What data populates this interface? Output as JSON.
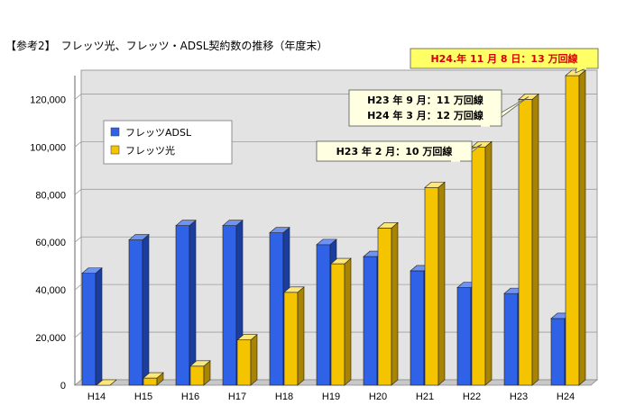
{
  "heading": "【参考2】　フレッツ光、フレッツ・ADSL契約数の推移（年度末）",
  "colors": {
    "adsl": "#2f62e6",
    "adsl_side": "#1a3ea0",
    "adsl_top": "#6f93f2",
    "hikari": "#f5c400",
    "hikari_side": "#a88400",
    "hikari_top": "#fde67a",
    "callout_fill": "#ffffe1",
    "callout_highlight_fill": "#ffff66",
    "callout_highlight_text": "#d40000",
    "grid": "#9e9e9e",
    "wall": "#e3e3e3"
  },
  "chart_data": {
    "type": "bar",
    "categories": [
      "H14",
      "H15",
      "H16",
      "H17",
      "H18",
      "H19",
      "H20",
      "H21",
      "H22",
      "H23",
      "H24"
    ],
    "series": [
      {
        "name": "フレッツADSL",
        "values": [
          47000,
          61000,
          67000,
          67000,
          64000,
          59000,
          54000,
          48000,
          41000,
          38500,
          28000
        ]
      },
      {
        "name": "フレッツ光",
        "values": [
          0,
          3000,
          8000,
          19000,
          39000,
          51000,
          66000,
          83000,
          100000,
          120000,
          130000
        ]
      }
    ],
    "ylim": [
      0,
      130000
    ],
    "yticks": [
      "0",
      "20,000",
      "40,000",
      "60,000",
      "80,000",
      "100,000",
      "120,000"
    ],
    "ytick_values": [
      0,
      20000,
      40000,
      60000,
      80000,
      100000,
      120000
    ],
    "grid": true,
    "legend_position": "top-left",
    "annotations": [
      {
        "lines": [
          "H23 年 2 月：10 万回線"
        ],
        "category": "H22",
        "highlight": false
      },
      {
        "lines": [
          "H23 年 9 月：11 万回線",
          "H24 年 3 月：12 万回線"
        ],
        "category": "H23",
        "highlight": false
      },
      {
        "lines": [
          "H24.年 11 月 8 日：13 万回線"
        ],
        "category": "H24",
        "highlight": true
      }
    ]
  }
}
